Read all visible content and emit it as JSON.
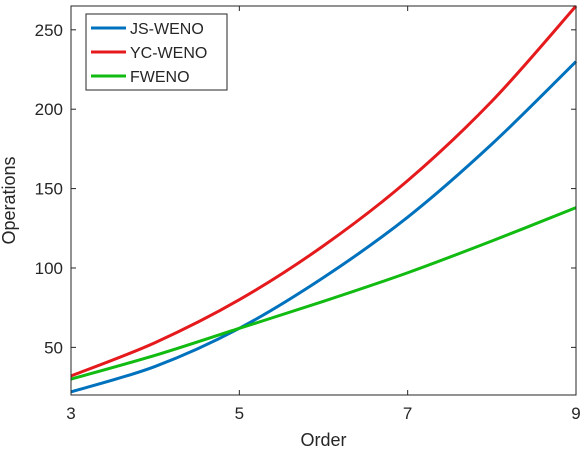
{
  "chart_data": {
    "type": "line",
    "title": "",
    "xlabel": "Order",
    "ylabel": "Operations",
    "xlim": [
      3,
      9
    ],
    "ylim": [
      20,
      265
    ],
    "xticks": [
      3,
      5,
      7,
      9
    ],
    "yticks": [
      50,
      100,
      150,
      200,
      250
    ],
    "grid": false,
    "legend_position": "top-left",
    "x": [
      3,
      4,
      5,
      6,
      7,
      8,
      9
    ],
    "series": [
      {
        "name": "JS-WENO",
        "color": "#0072BD",
        "values": [
          22,
          38,
          62,
          94,
          132,
          178,
          230
        ]
      },
      {
        "name": "YC-WENO",
        "color": "#E41A1C",
        "values": [
          32,
          53,
          80,
          114,
          155,
          205,
          265
        ]
      },
      {
        "name": "FWENO",
        "color": "#11BB11",
        "values": [
          30,
          45,
          62,
          79,
          97,
          117,
          138
        ]
      }
    ]
  }
}
